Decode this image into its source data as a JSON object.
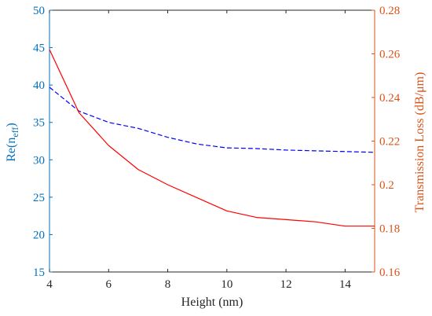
{
  "chart_data": {
    "type": "line",
    "xlabel": "Height (nm)",
    "ylabel_left_base": "Re(n",
    "ylabel_left_sub": "eff",
    "ylabel_left_close": ")",
    "ylabel_right": "Transmission Loss (dB/μm)",
    "xlim": [
      4,
      15
    ],
    "ylim_left": [
      15,
      50
    ],
    "ylim_right": [
      0.16,
      0.28
    ],
    "xticks": [
      "4",
      "6",
      "8",
      "10",
      "12",
      "14"
    ],
    "yticks_left": [
      "15",
      "20",
      "25",
      "30",
      "35",
      "40",
      "45",
      "50"
    ],
    "yticks_right": [
      "0.16",
      "0.18",
      "0.2",
      "0.22",
      "0.24",
      "0.26",
      "0.28"
    ],
    "grid": false,
    "box": true,
    "series": [
      {
        "axis": "left",
        "style": "dashed",
        "color": "#0000ff",
        "x": [
          4,
          5,
          6,
          7,
          8,
          9,
          10,
          11,
          12,
          13,
          14,
          15
        ],
        "y": [
          39.7,
          36.5,
          35.0,
          34.2,
          33.0,
          32.1,
          31.6,
          31.5,
          31.3,
          31.2,
          31.1,
          31.0
        ]
      },
      {
        "axis": "right",
        "style": "solid",
        "color": "#ff0000",
        "x": [
          4,
          5,
          6,
          7,
          8,
          9,
          10,
          11,
          12,
          13,
          14,
          15
        ],
        "y": [
          0.262,
          0.233,
          0.218,
          0.207,
          0.2,
          0.194,
          0.188,
          0.185,
          0.184,
          0.183,
          0.181,
          0.181
        ]
      }
    ],
    "colors": {
      "left_axis": "#0072BD",
      "right_axis": "#D95319",
      "x_axis": "#262626"
    }
  }
}
